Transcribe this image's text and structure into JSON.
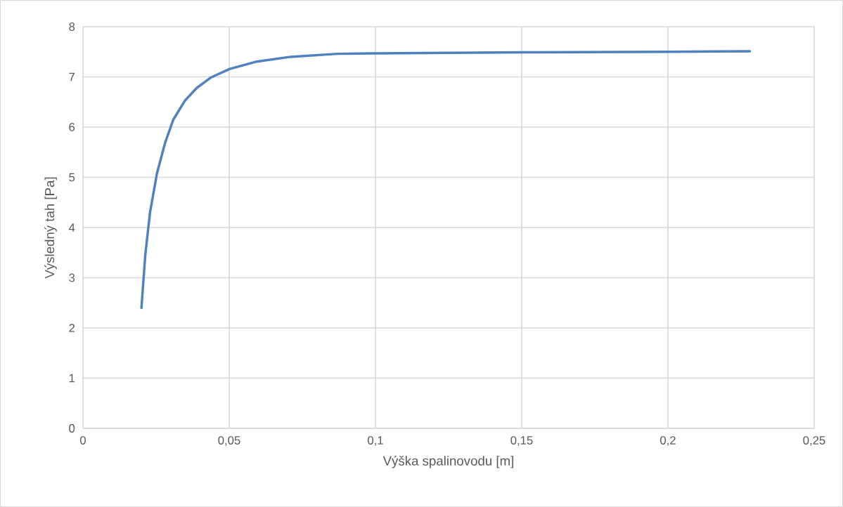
{
  "chart_data": {
    "type": "line",
    "xlabel": "Výška spalinovodu [m]",
    "ylabel": "Výsledný tah [Pa]",
    "x": [
      0.02,
      0.0213,
      0.0229,
      0.0253,
      0.0281,
      0.0309,
      0.0349,
      0.0389,
      0.0438,
      0.0502,
      0.059,
      0.071,
      0.087,
      0.1,
      0.15,
      0.2,
      0.228
    ],
    "series": [
      {
        "color": "#4f81bd",
        "values": [
          2.4,
          3.45,
          4.29,
          5.08,
          5.69,
          6.15,
          6.53,
          6.78,
          6.99,
          7.16,
          7.3,
          7.4,
          7.46,
          7.47,
          7.49,
          7.5,
          7.51
        ]
      }
    ],
    "xlim": [
      0,
      0.25
    ],
    "ylim": [
      0,
      8
    ],
    "xticks": [
      0,
      {
        "value": 0.05,
        "label": "0,05"
      },
      {
        "value": 0.1,
        "label": "0,1"
      },
      {
        "value": 0.15,
        "label": "0,15"
      },
      {
        "value": 0.2,
        "label": "0,2"
      },
      {
        "value": 0.25,
        "label": "0,25"
      }
    ],
    "yticks": [
      0,
      1,
      2,
      3,
      4,
      5,
      6,
      7,
      8
    ],
    "grid": true,
    "marker": "none",
    "line_style": "solid"
  }
}
